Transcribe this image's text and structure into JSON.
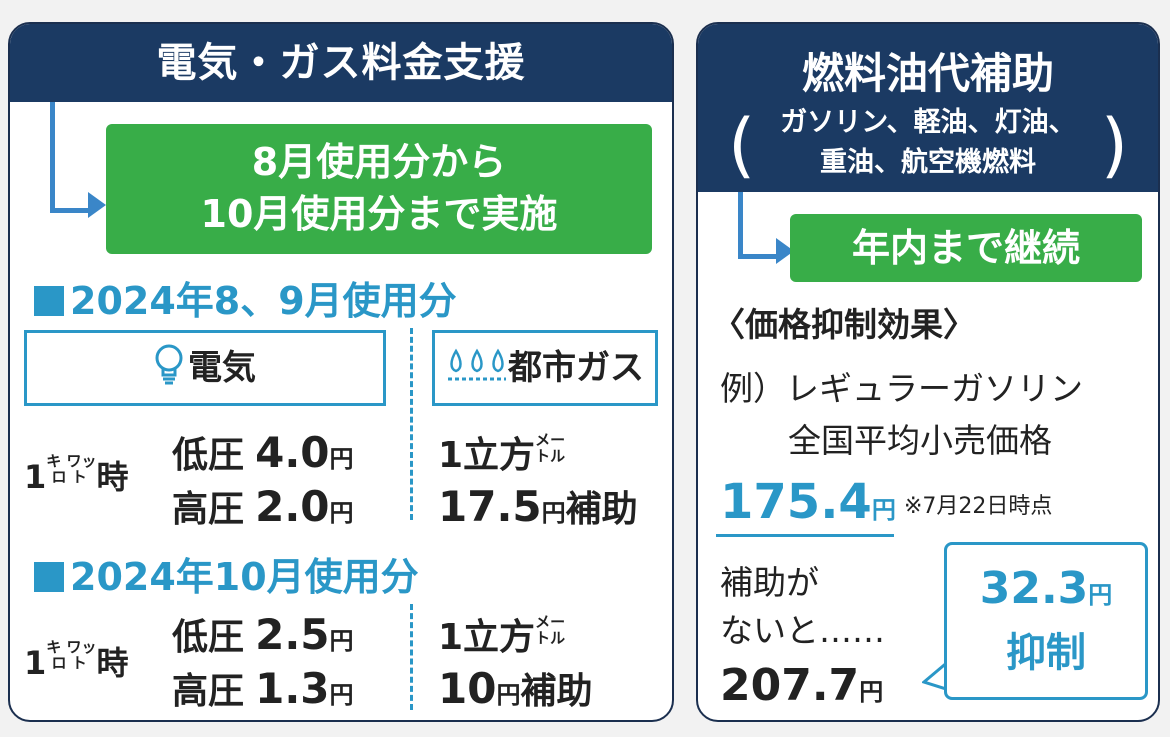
{
  "left": {
    "title": "電気・ガス料金支援",
    "period": [
      "8月使用分から",
      "10月使用分まで実施"
    ],
    "sections": [
      {
        "heading": "2024年8、9月使用分",
        "electric_label": "電気",
        "gas_label": "都市ガス",
        "kwh": "1",
        "kwh_unit_top": "キ",
        "kwh_unit_top2": "ワッ",
        "kwh_unit_bot": "ロ",
        "kwh_unit_bot2": "ト",
        "kwh_suffix": "時",
        "low_label": "低圧",
        "low_value": "4.0",
        "high_label": "高圧",
        "high_value": "2.0",
        "yen": "円",
        "gas_per": "1立方",
        "gas_unit_top": "メー",
        "gas_unit_bot": "トル",
        "gas_value": "17.5",
        "gas_suffix": "補助"
      },
      {
        "heading": "2024年10月使用分",
        "kwh": "1",
        "kwh_unit_top": "キ",
        "kwh_unit_top2": "ワッ",
        "kwh_unit_bot": "ロ",
        "kwh_unit_bot2": "ト",
        "kwh_suffix": "時",
        "low_label": "低圧",
        "low_value": "2.5",
        "high_label": "高圧",
        "high_value": "1.3",
        "yen": "円",
        "gas_per": "1立方",
        "gas_unit_top": "メー",
        "gas_unit_bot": "トル",
        "gas_value": "10",
        "gas_suffix": "補助"
      }
    ]
  },
  "right": {
    "title": "燃料油代補助",
    "subtitle": [
      "ガソリン、軽油、灯油、",
      "重油、航空機燃料"
    ],
    "paren_open": "(",
    "paren_close": ")",
    "period": "年内まで継続",
    "effect_heading": "〈価格抑制効果〉",
    "example_line1": "例）レギュラーガソリン",
    "example_line2": "全国平均小売価格",
    "price": "175.4",
    "yen": "円",
    "price_note": "※7月22日時点",
    "without_line1": "補助が",
    "without_line2": "ないと……",
    "without_price": "207.7",
    "suppress_value": "32.3",
    "suppress_label": "抑制"
  },
  "colors": {
    "navy": "#1b3a63",
    "green": "#38ad48",
    "blue": "#2a97c7"
  },
  "icons": [
    "lightbulb-icon",
    "gas-flame-icon"
  ]
}
